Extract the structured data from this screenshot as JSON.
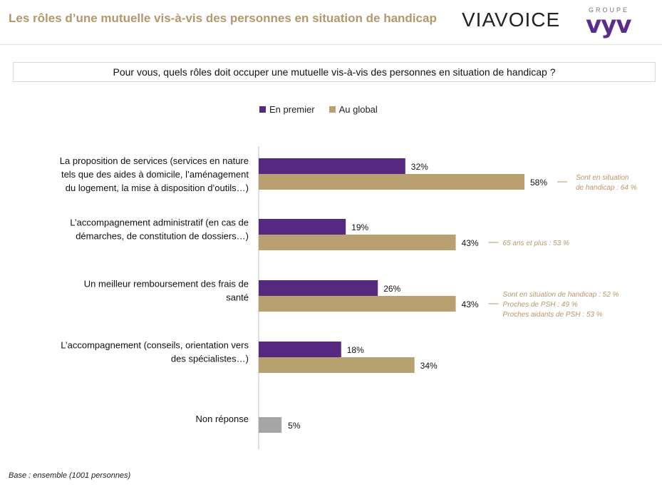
{
  "header": {
    "title": "Les rôles d’une mutuelle vis-à-vis des personnes en situation de handicap",
    "logo_viavoice": "VIAVOICE",
    "logo_groupe": "GROUPE",
    "logo_vyv": "vyv"
  },
  "question": "Pour vous, quels rôles doit occuper une mutuelle vis-à-vis des personnes en situation de handicap ?",
  "colors": {
    "premier": "#55297f",
    "global": "#b9a071",
    "nonreponse": "#a6a6a6",
    "note": "#b9976a"
  },
  "chart_data": {
    "type": "bar",
    "orientation": "horizontal",
    "series": [
      {
        "name": "En premier",
        "values": [
          32,
          19,
          26,
          18,
          null
        ]
      },
      {
        "name": "Au global",
        "values": [
          58,
          43,
          43,
          34,
          5
        ]
      }
    ],
    "categories": [
      [
        "La proposition de services (services en nature",
        "tels que des aides à domicile, l’aménagement",
        "du logement, la mise à disposition d’outils…)"
      ],
      [
        "L’accompagnement administratif (en cas de",
        "démarches, de constitution de dossiers…)"
      ],
      [
        "Un meilleur remboursement des frais de",
        "santé"
      ],
      [
        "L’accompagnement (conseils, orientation vers",
        "des spécialistes…)"
      ],
      [
        "Non réponse"
      ]
    ],
    "value_suffix": "%",
    "annotations": [
      [
        "Sont en situation",
        "de handicap : 64 %"
      ],
      [
        "65 ans et plus : 53 %"
      ],
      [
        "Sont en situation de handicap : 52 %",
        "Proches de PSH : 49 %",
        "Proches aidants de PSH : 53 %"
      ],
      [],
      []
    ],
    "legend_position": "top"
  },
  "footer": {
    "base": "Base : ensemble (1001 personnes)"
  }
}
